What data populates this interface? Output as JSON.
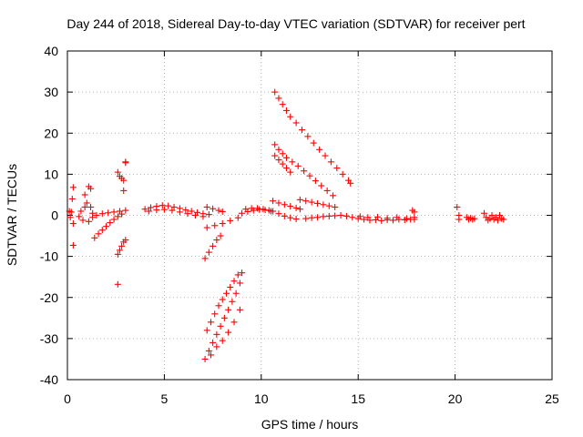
{
  "chart_data": {
    "type": "scatter",
    "title": "Day 244 of 2018, Sidereal Day-to-day VTEC variation (SDTVAR) for receiver pert",
    "xlabel": "GPS time / hours",
    "ylabel": "SDTVAR / TECUs",
    "xlim": [
      0,
      25
    ],
    "ylim": [
      -40,
      40
    ],
    "xticks": [
      0,
      5,
      10,
      15,
      20,
      25
    ],
    "yticks": [
      -40,
      -30,
      -20,
      -10,
      0,
      10,
      20,
      30,
      40
    ],
    "grid": true,
    "grid_style": "dotted",
    "marker": "+",
    "color": "#ff0000",
    "series": [
      {
        "values": [
          [
            0.1,
            1.0
          ],
          [
            0.15,
            -0.5
          ],
          [
            0.2,
            0.8
          ],
          [
            0.25,
            4
          ],
          [
            0.3,
            6.8
          ],
          [
            0.3,
            -7.3
          ],
          [
            0.3,
            -2
          ],
          [
            0.6,
            -0.3
          ],
          [
            0.7,
            1.0
          ],
          [
            0.8,
            -1.2
          ],
          [
            0.9,
            2.0
          ],
          [
            0.9,
            5.0
          ],
          [
            1.0,
            3.0
          ],
          [
            1.1,
            -1.5
          ],
          [
            1.1,
            7.0
          ],
          [
            1.2,
            6.5
          ],
          [
            1.2,
            2.0
          ],
          [
            1.3,
            0.5
          ],
          [
            1.3,
            -0.5
          ],
          [
            2.6,
            10.5
          ],
          [
            2.7,
            9.5
          ],
          [
            2.8,
            9.0
          ],
          [
            2.9,
            8.5
          ],
          [
            2.9,
            6.0
          ],
          [
            3.0,
            13.0
          ],
          [
            3.0,
            12.8
          ],
          [
            2.6,
            -16.8
          ],
          [
            2.6,
            -9.5
          ],
          [
            2.7,
            -8.5
          ],
          [
            2.8,
            -7.5
          ],
          [
            2.9,
            -6.5
          ],
          [
            3.0,
            -6.0
          ],
          [
            1.4,
            -5.5
          ],
          [
            1.6,
            -4.5
          ],
          [
            1.8,
            -3.6
          ],
          [
            2.0,
            -2.7
          ],
          [
            2.2,
            -1.8
          ],
          [
            2.4,
            -1.0
          ],
          [
            2.6,
            -0.3
          ],
          [
            2.8,
            0.3
          ],
          [
            1.5,
            0.0
          ],
          [
            1.8,
            0.4
          ],
          [
            2.1,
            0.6
          ],
          [
            2.4,
            0.8
          ],
          [
            2.7,
            1.0
          ],
          [
            3.0,
            1.2
          ],
          [
            4.0,
            1.5
          ],
          [
            4.3,
            1.9
          ],
          [
            4.6,
            2.2
          ],
          [
            4.9,
            2.4
          ],
          [
            5.2,
            2.3
          ],
          [
            5.5,
            2.0
          ],
          [
            5.8,
            1.7
          ],
          [
            6.1,
            1.3
          ],
          [
            6.4,
            1.0
          ],
          [
            6.7,
            0.7
          ],
          [
            7.0,
            0.4
          ],
          [
            7.3,
            0.2
          ],
          [
            4.2,
            1.0
          ],
          [
            4.6,
            1.3
          ],
          [
            5.0,
            1.4
          ],
          [
            5.4,
            1.2
          ],
          [
            5.8,
            0.8
          ],
          [
            6.2,
            0.4
          ],
          [
            6.6,
            0.0
          ],
          [
            7.0,
            -0.3
          ],
          [
            7.2,
            2.0
          ],
          [
            7.5,
            1.6
          ],
          [
            7.8,
            1.2
          ],
          [
            8.0,
            0.9
          ],
          [
            7.2,
            -3.0
          ],
          [
            7.6,
            -2.5
          ],
          [
            8.0,
            -2.0
          ],
          [
            8.4,
            -1.3
          ],
          [
            8.8,
            -0.6
          ],
          [
            7.1,
            -10.5
          ],
          [
            7.3,
            -9.0
          ],
          [
            7.5,
            -7.5
          ],
          [
            7.7,
            -6.0
          ],
          [
            7.9,
            -5.0
          ],
          [
            7.2,
            -28.0
          ],
          [
            7.4,
            -26.0
          ],
          [
            7.6,
            -24.0
          ],
          [
            7.8,
            -22.0
          ],
          [
            8.0,
            -20.5
          ],
          [
            8.2,
            -19.0
          ],
          [
            8.4,
            -17.5
          ],
          [
            8.6,
            -16.0
          ],
          [
            8.8,
            -14.5
          ],
          [
            7.1,
            -35.0
          ],
          [
            7.3,
            -33.0
          ],
          [
            7.5,
            -31.0
          ],
          [
            7.7,
            -29.0
          ],
          [
            7.9,
            -27.0
          ],
          [
            8.1,
            -25.0
          ],
          [
            8.3,
            -23.0
          ],
          [
            8.5,
            -21.0
          ],
          [
            8.7,
            -19.0
          ],
          [
            8.9,
            -16.5
          ],
          [
            9.0,
            -14.0
          ],
          [
            7.4,
            -34.0
          ],
          [
            7.7,
            -32.0
          ],
          [
            8.0,
            -30.5
          ],
          [
            8.3,
            -28.5
          ],
          [
            8.6,
            -26.0
          ],
          [
            8.9,
            -23.0
          ],
          [
            9.0,
            0.5
          ],
          [
            9.3,
            0.9
          ],
          [
            9.6,
            1.2
          ],
          [
            9.9,
            1.4
          ],
          [
            10.2,
            1.3
          ],
          [
            10.5,
            1.0
          ],
          [
            9.2,
            1.5
          ],
          [
            9.5,
            1.7
          ],
          [
            9.8,
            1.7
          ],
          [
            10.1,
            1.5
          ],
          [
            10.4,
            1.2
          ],
          [
            10.7,
            30.0
          ],
          [
            10.9,
            28.5
          ],
          [
            11.1,
            27.0
          ],
          [
            11.3,
            25.5
          ],
          [
            11.5,
            24.0
          ],
          [
            11.8,
            22.5
          ],
          [
            12.1,
            20.8
          ],
          [
            12.4,
            19.2
          ],
          [
            12.7,
            17.6
          ],
          [
            13.0,
            16.0
          ],
          [
            13.3,
            14.5
          ],
          [
            13.6,
            13.0
          ],
          [
            13.9,
            11.5
          ],
          [
            14.2,
            10.0
          ],
          [
            14.5,
            8.5
          ],
          [
            14.6,
            7.8
          ],
          [
            10.7,
            17.2
          ],
          [
            10.9,
            16.0
          ],
          [
            11.1,
            15.0
          ],
          [
            11.3,
            14.0
          ],
          [
            11.6,
            13.0
          ],
          [
            11.9,
            12.0
          ],
          [
            12.2,
            10.8
          ],
          [
            12.5,
            9.6
          ],
          [
            12.8,
            8.4
          ],
          [
            13.1,
            7.2
          ],
          [
            13.4,
            6.0
          ],
          [
            13.7,
            4.8
          ],
          [
            10.7,
            14.5
          ],
          [
            10.9,
            13.5
          ],
          [
            11.1,
            12.5
          ],
          [
            11.3,
            11.5
          ],
          [
            11.5,
            10.5
          ],
          [
            10.6,
            3.5
          ],
          [
            10.9,
            3.0
          ],
          [
            11.2,
            2.6
          ],
          [
            11.5,
            2.2
          ],
          [
            11.8,
            1.8
          ],
          [
            12.0,
            1.5
          ],
          [
            10.6,
            1.0
          ],
          [
            10.9,
            0.4
          ],
          [
            11.2,
            -0.2
          ],
          [
            11.5,
            -0.6
          ],
          [
            11.8,
            -0.9
          ],
          [
            12.0,
            3.8
          ],
          [
            12.3,
            3.5
          ],
          [
            12.6,
            3.2
          ],
          [
            12.9,
            2.9
          ],
          [
            13.2,
            2.6
          ],
          [
            13.5,
            2.3
          ],
          [
            13.8,
            2.0
          ],
          [
            12.3,
            -0.8
          ],
          [
            12.6,
            -0.6
          ],
          [
            12.9,
            -0.5
          ],
          [
            13.2,
            -0.3
          ],
          [
            13.5,
            -0.2
          ],
          [
            13.8,
            -0.1
          ],
          [
            14.1,
            0.0
          ],
          [
            14.4,
            -0.2
          ],
          [
            14.7,
            -0.5
          ],
          [
            15.0,
            -0.8
          ],
          [
            15.3,
            -1.0
          ],
          [
            15.6,
            -1.2
          ],
          [
            15.9,
            -1.1
          ],
          [
            16.2,
            -1.3
          ],
          [
            16.5,
            -1.1
          ],
          [
            16.8,
            -1.2
          ],
          [
            17.1,
            -1.0
          ],
          [
            17.4,
            -1.1
          ],
          [
            17.7,
            -1.0
          ],
          [
            15.1,
            -0.3
          ],
          [
            15.5,
            -0.5
          ],
          [
            16.0,
            -0.4
          ],
          [
            16.5,
            -0.7
          ],
          [
            17.0,
            -0.5
          ],
          [
            17.5,
            -0.8
          ],
          [
            17.8,
            1.2
          ],
          [
            17.9,
            0.8
          ],
          [
            17.9,
            -0.5
          ],
          [
            17.9,
            -1.0
          ],
          [
            20.1,
            2.0
          ],
          [
            20.2,
            -1.0
          ],
          [
            20.2,
            0.0
          ],
          [
            20.6,
            -0.5
          ],
          [
            20.7,
            -1.0
          ],
          [
            20.8,
            -0.7
          ],
          [
            20.9,
            -1.0
          ],
          [
            21.0,
            -0.8
          ],
          [
            21.5,
            0.5
          ],
          [
            21.6,
            -0.5
          ],
          [
            21.7,
            -1.2
          ],
          [
            21.8,
            -0.8
          ],
          [
            21.9,
            0.0
          ],
          [
            22.0,
            -1.0
          ],
          [
            22.1,
            -0.5
          ],
          [
            22.2,
            -1.2
          ],
          [
            22.3,
            0.0
          ],
          [
            22.4,
            -0.8
          ],
          [
            22.5,
            -1.0
          ]
        ]
      }
    ]
  }
}
